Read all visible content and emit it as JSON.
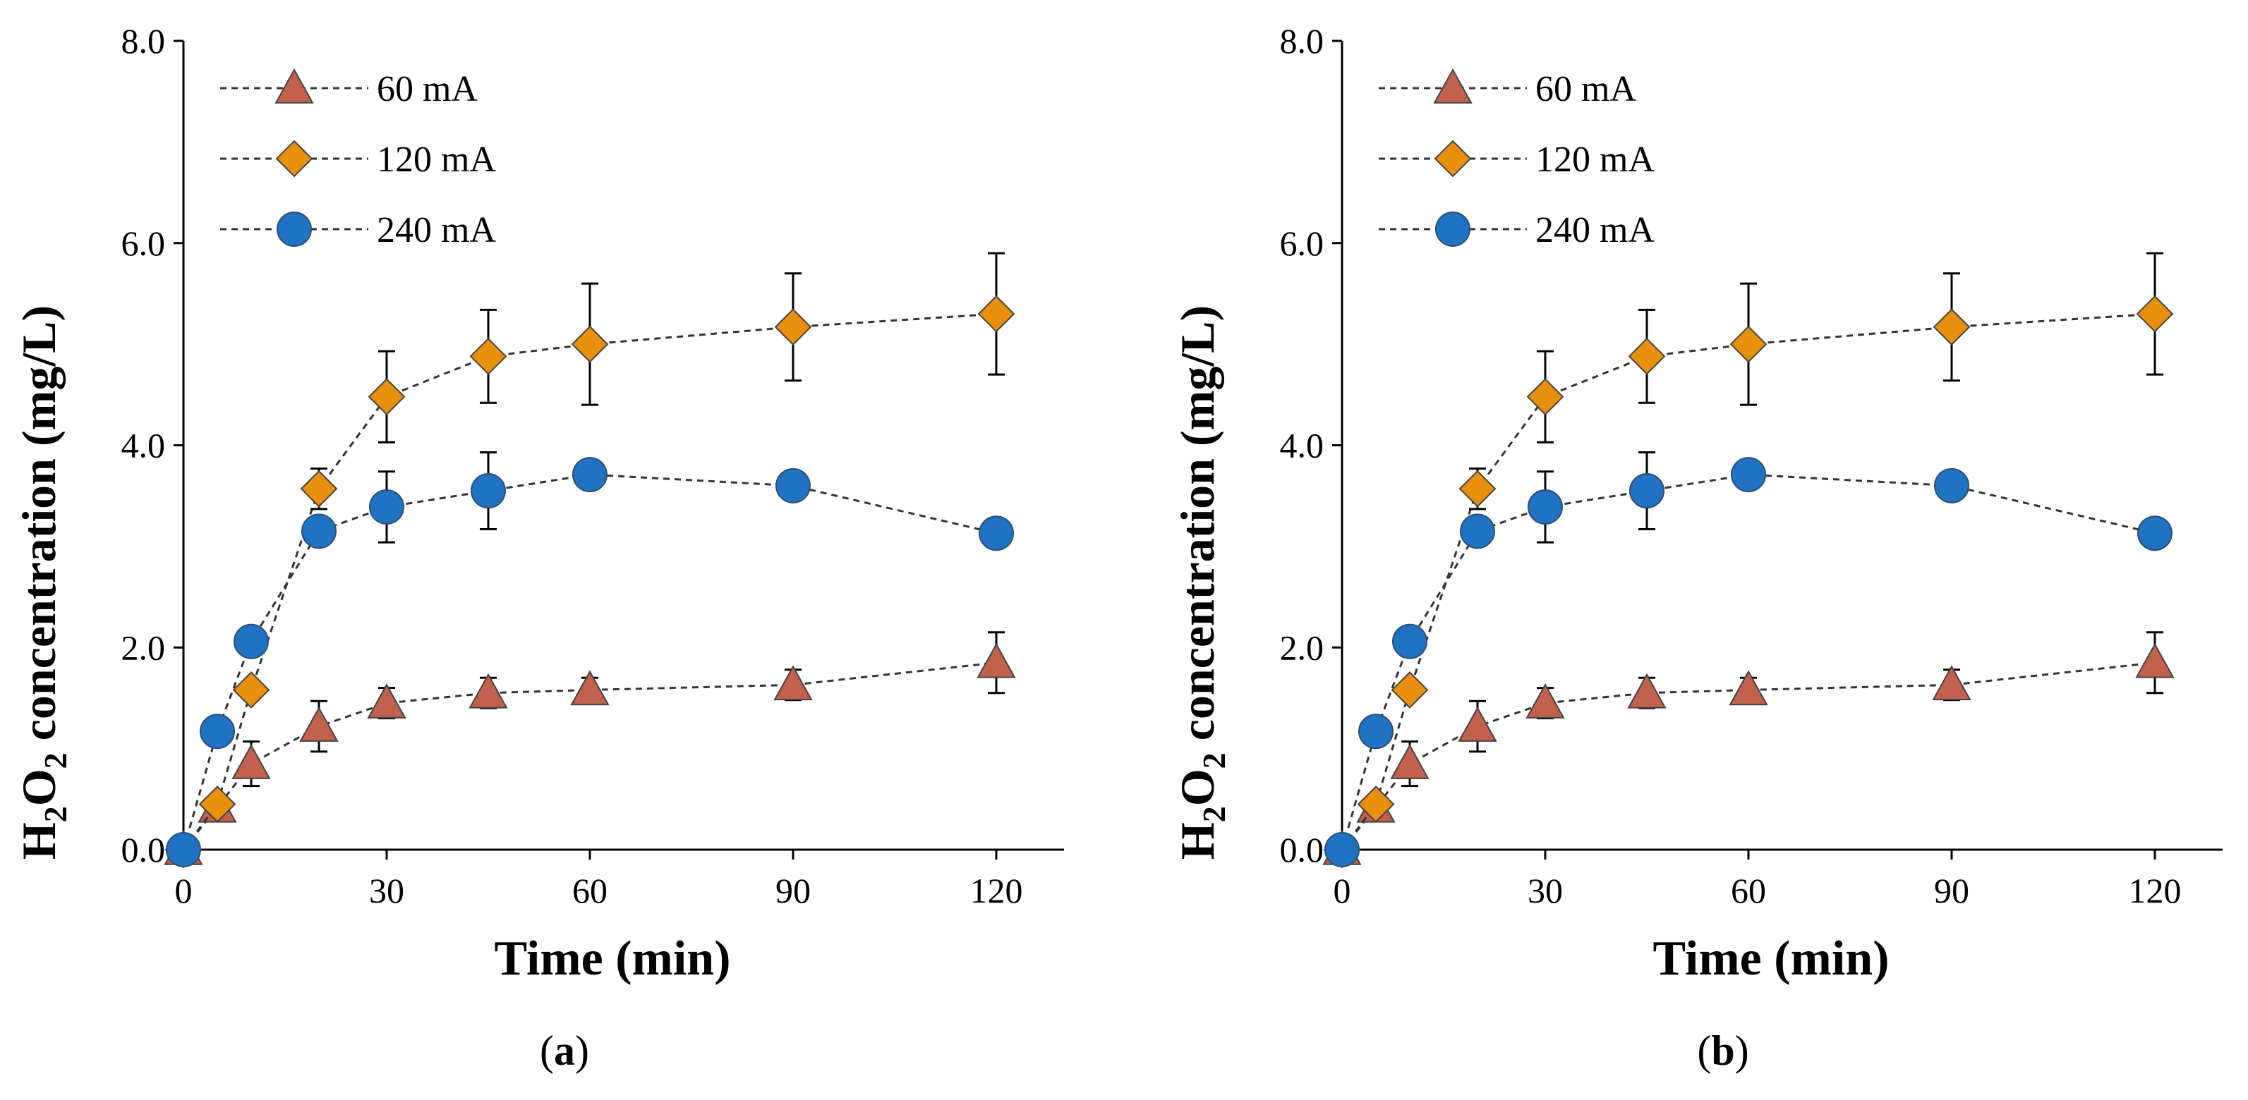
{
  "chart_data": [
    {
      "panel": "a",
      "panel_label_open": "(",
      "panel_label_letter": "a",
      "panel_label_close": ")",
      "type": "line",
      "xlabel": "Time (min)",
      "ylabel_h": "H",
      "ylabel_sub2": "2",
      "ylabel_o": "O",
      "ylabel_rest": " concentration (mg/L)",
      "xlim": [
        0,
        130
      ],
      "ylim": [
        0,
        8
      ],
      "xticks": [
        0,
        30,
        60,
        90,
        120
      ],
      "xtick_labels": [
        "0",
        "30",
        "60",
        "90",
        "120"
      ],
      "yticks": [
        0,
        2,
        4,
        6,
        8
      ],
      "ytick_labels": [
        "0.0",
        "2.0",
        "4.0",
        "6.0",
        "8.0"
      ],
      "legend_position": "top-left",
      "series": [
        {
          "name": "60 mA",
          "marker": "triangle",
          "color": "#c0604d",
          "x": [
            0,
            5,
            10,
            20,
            30,
            45,
            60,
            90,
            120
          ],
          "y": [
            0,
            0.42,
            0.85,
            1.22,
            1.45,
            1.55,
            1.58,
            1.63,
            1.85
          ],
          "err": [
            0,
            0,
            0.22,
            0.25,
            0.15,
            0.15,
            0.12,
            0.15,
            0.3
          ]
        },
        {
          "name": "120 mA",
          "marker": "diamond",
          "color": "#e8900c",
          "x": [
            0,
            5,
            10,
            20,
            30,
            45,
            60,
            90,
            120
          ],
          "y": [
            0,
            0.45,
            1.58,
            3.57,
            4.48,
            4.88,
            5.0,
            5.17,
            5.3
          ],
          "err": [
            0,
            0,
            0,
            0.2,
            0.45,
            0.46,
            0.6,
            0.53,
            0.6
          ]
        },
        {
          "name": "240 mA",
          "marker": "circle",
          "color": "#1f72c4",
          "x": [
            0,
            5,
            10,
            20,
            30,
            45,
            60,
            90,
            120
          ],
          "y": [
            0,
            1.17,
            2.06,
            3.15,
            3.39,
            3.55,
            3.71,
            3.6,
            3.13
          ],
          "err": [
            0,
            0,
            0,
            0,
            0.35,
            0.38,
            0,
            0,
            0
          ]
        }
      ]
    },
    {
      "panel": "b",
      "panel_label_open": "(",
      "panel_label_letter": "b",
      "panel_label_close": ")",
      "type": "line",
      "xlabel": "Time (min)",
      "ylabel_h": "H",
      "ylabel_sub2": "2",
      "ylabel_o": "O",
      "ylabel_rest": " concentration (mg/L)",
      "xlim": [
        0,
        130
      ],
      "ylim": [
        0,
        8
      ],
      "xticks": [
        0,
        30,
        60,
        90,
        120
      ],
      "xtick_labels": [
        "0",
        "30",
        "60",
        "90",
        "120"
      ],
      "yticks": [
        0,
        2,
        4,
        6,
        8
      ],
      "ytick_labels": [
        "0.0",
        "2.0",
        "4.0",
        "6.0",
        "8.0"
      ],
      "legend_position": "top-left",
      "series": [
        {
          "name": "60 mA",
          "marker": "triangle",
          "color": "#c0604d",
          "x": [
            0,
            5,
            10,
            20,
            30,
            45,
            60,
            90,
            120
          ],
          "y": [
            0,
            0.42,
            0.85,
            1.22,
            1.45,
            1.55,
            1.58,
            1.63,
            1.85
          ],
          "err": [
            0,
            0,
            0.22,
            0.25,
            0.15,
            0.15,
            0.12,
            0.15,
            0.3
          ]
        },
        {
          "name": "120 mA",
          "marker": "diamond",
          "color": "#e8900c",
          "x": [
            0,
            5,
            10,
            20,
            30,
            45,
            60,
            90,
            120
          ],
          "y": [
            0,
            0.45,
            1.58,
            3.57,
            4.48,
            4.88,
            5.0,
            5.17,
            5.3
          ],
          "err": [
            0,
            0,
            0,
            0.2,
            0.45,
            0.46,
            0.6,
            0.53,
            0.6
          ]
        },
        {
          "name": "240 mA",
          "marker": "circle",
          "color": "#1f72c4",
          "x": [
            0,
            5,
            10,
            20,
            30,
            45,
            60,
            90,
            120
          ],
          "y": [
            0,
            1.17,
            2.06,
            3.15,
            3.39,
            3.55,
            3.71,
            3.6,
            3.13
          ],
          "err": [
            0,
            0,
            0,
            0,
            0.35,
            0.38,
            0,
            0,
            0
          ]
        }
      ]
    }
  ]
}
